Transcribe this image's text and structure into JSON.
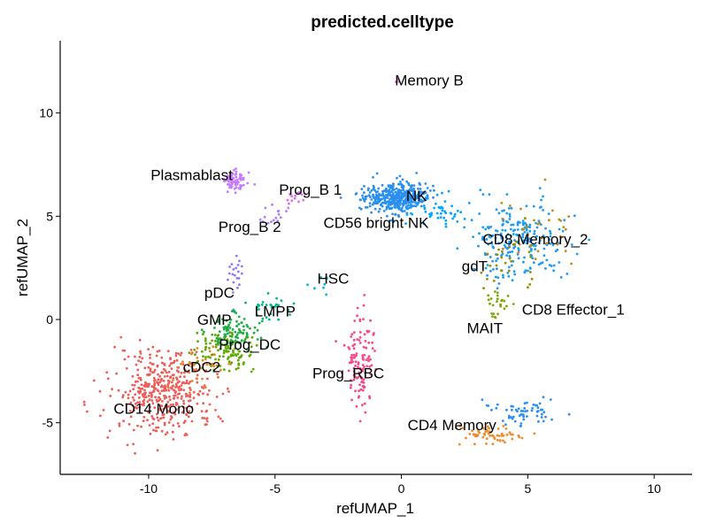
{
  "chart_data": {
    "type": "scatter",
    "title": "predicted.celltype",
    "xlabel": "refUMAP_1",
    "ylabel": "refUMAP_2",
    "xlim": [
      -13.5,
      11.5
    ],
    "ylim": [
      -7.5,
      13.5
    ],
    "x_ticks": [
      -10,
      -5,
      0,
      5,
      10
    ],
    "y_ticks": [
      -5,
      0,
      5,
      10
    ],
    "x_tick_labels": [
      "-10",
      "-5",
      "0",
      "5",
      "10"
    ],
    "y_tick_labels": [
      "-5",
      "0",
      "5",
      "10"
    ],
    "grid": false,
    "legend": "none",
    "clusters": [
      {
        "label": "CD14 Mono",
        "color": "#ef5d58",
        "label_x": -9.8,
        "label_y": -4.3,
        "center": [
          -9.5,
          -3.5
        ],
        "spread": [
          1.0,
          1.0
        ],
        "count": 420
      },
      {
        "label": "cDC2",
        "color": "#e7862c",
        "label_x": -7.9,
        "label_y": -2.3,
        "center": [
          -8.0,
          -2.2
        ],
        "spread": [
          0.5,
          0.5
        ],
        "count": 40
      },
      {
        "label": "Prog_DC",
        "color": "#5fa800",
        "label_x": -6.0,
        "label_y": -1.2,
        "center": [
          -7.0,
          -1.6
        ],
        "spread": [
          0.6,
          0.6
        ],
        "count": 110
      },
      {
        "label": "GMP",
        "color": "#1fae46",
        "label_x": -7.4,
        "label_y": 0.0,
        "center": [
          -6.6,
          -0.5
        ],
        "spread": [
          0.5,
          0.4
        ],
        "count": 90
      },
      {
        "label": "LMPP",
        "color": "#00b48a",
        "label_x": -5.0,
        "label_y": 0.4,
        "center": [
          -5.3,
          0.6
        ],
        "spread": [
          0.5,
          0.3
        ],
        "count": 30
      },
      {
        "label": "pDC",
        "color": "#8a7bf4",
        "label_x": -7.2,
        "label_y": 1.3,
        "center": [
          -6.6,
          2.1
        ],
        "spread": [
          0.15,
          0.4
        ],
        "count": 20
      },
      {
        "label": "HSC",
        "color": "#00b9e3",
        "label_x": -2.7,
        "label_y": 2.0,
        "center": [
          -3.2,
          1.8
        ],
        "spread": [
          0.3,
          0.3
        ],
        "count": 8
      },
      {
        "label": "Prog_RBC",
        "color": "#f9488a",
        "label_x": -2.1,
        "label_y": -2.6,
        "center": [
          -1.6,
          -2.0
        ],
        "spread": [
          0.3,
          1.2
        ],
        "count": 120
      },
      {
        "label": "Plasmablast",
        "color": "#c77cff",
        "label_x": -8.3,
        "label_y": 7.0,
        "center": [
          -6.6,
          6.7
        ],
        "spread": [
          0.3,
          0.25
        ],
        "count": 70
      },
      {
        "label": "Prog_B 1",
        "color": "#d96bf0",
        "label_x": -3.6,
        "label_y": 6.3,
        "center": [
          -4.2,
          5.9
        ],
        "spread": [
          0.25,
          0.2
        ],
        "count": 15
      },
      {
        "label": "Prog_B 2",
        "color": "#b17dfa",
        "label_x": -6.0,
        "label_y": 4.5,
        "center": [
          -5.2,
          5.0
        ],
        "spread": [
          0.3,
          0.25
        ],
        "count": 15
      },
      {
        "label": "Memory B",
        "color": "#e069d1",
        "label_x": 1.1,
        "label_y": 11.6,
        "center": [
          -0.2,
          11.5
        ],
        "spread": [
          0.1,
          0.1
        ],
        "count": 3
      },
      {
        "label": "NK",
        "color": "#2b8ff0",
        "label_x": 0.6,
        "label_y": 6.0,
        "center": [
          -0.2,
          5.9
        ],
        "spread": [
          0.6,
          0.35
        ],
        "count": 420
      },
      {
        "label": "CD56 bright NK",
        "color": "#00a6ff",
        "label_x": -1.0,
        "label_y": 4.7,
        "center": [
          1.5,
          5.2
        ],
        "spread": [
          0.6,
          0.4
        ],
        "count": 50
      },
      {
        "label": "CD8 Memory_2",
        "color": "#1c9bf0",
        "label_x": 5.3,
        "label_y": 3.9,
        "center": [
          4.6,
          3.8
        ],
        "spread": [
          0.9,
          0.9
        ],
        "count": 230
      },
      {
        "label": "gdT",
        "color": "#9a8b00",
        "label_x": 2.9,
        "label_y": 2.6,
        "center": [
          4.2,
          3.0
        ],
        "spread": [
          0.8,
          0.8
        ],
        "count": 30
      },
      {
        "label": "CD8 Effector_1",
        "color": "#c48a16",
        "label_x": 6.8,
        "label_y": 0.5,
        "center": [
          5.6,
          4.2
        ],
        "spread": [
          1.0,
          1.0
        ],
        "count": 30
      },
      {
        "label": "MAIT",
        "color": "#7aa700",
        "label_x": 3.3,
        "label_y": -0.4,
        "center": [
          3.9,
          0.8
        ],
        "spread": [
          0.3,
          0.6
        ],
        "count": 25
      },
      {
        "label": "CD4 Memory",
        "color": "#f08a2b",
        "label_x": 2.0,
        "label_y": -5.1,
        "center": [
          3.5,
          -5.6
        ],
        "spread": [
          0.7,
          0.3
        ],
        "count": 60
      },
      {
        "label": "",
        "color": "#2b8ff0",
        "label_x": null,
        "label_y": null,
        "center": [
          4.8,
          -4.5
        ],
        "spread": [
          0.8,
          0.25
        ],
        "count": 60
      }
    ]
  }
}
